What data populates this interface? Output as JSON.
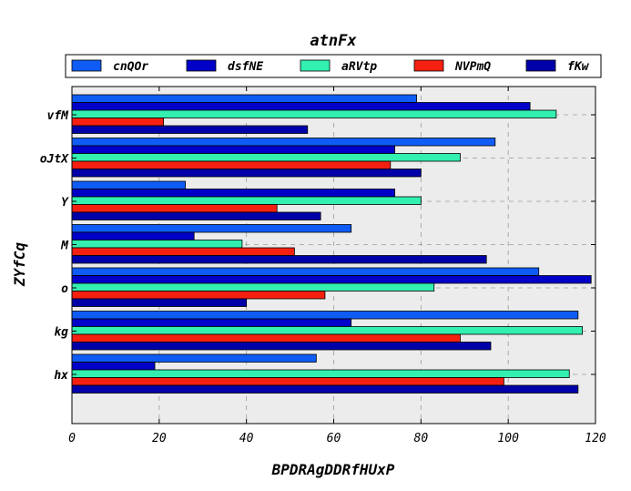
{
  "chart_data": {
    "type": "bar",
    "orientation": "horizontal",
    "title": "atnFx",
    "xlabel": "BPDRAgDDRfHUxP",
    "ylabel": "ZYfCq",
    "xlim": [
      0,
      120
    ],
    "xticks": [
      "0",
      "20",
      "40",
      "60",
      "80",
      "100",
      "120"
    ],
    "categories": [
      "vfM",
      "oJtX",
      "Y",
      "M",
      "o",
      "kg",
      "hx"
    ],
    "series": [
      {
        "name": "cnQOr",
        "color": "#0f5cf5",
        "values": [
          79,
          97,
          26,
          64,
          107,
          116,
          56
        ]
      },
      {
        "name": "dsfNE",
        "color": "#0000c8",
        "values": [
          105,
          74,
          74,
          28,
          119,
          64,
          19
        ]
      },
      {
        "name": "aRVtp",
        "color": "#33f0b0",
        "values": [
          111,
          89,
          80,
          39,
          83,
          117,
          114
        ]
      },
      {
        "name": "NVPmQ",
        "color": "#f52010",
        "values": [
          21,
          73,
          47,
          51,
          58,
          89,
          99
        ]
      },
      {
        "name": "fKw",
        "color": "#0000a8",
        "values": [
          54,
          80,
          57,
          95,
          40,
          96,
          116
        ]
      }
    ],
    "grid": true,
    "legend_position": "top"
  }
}
